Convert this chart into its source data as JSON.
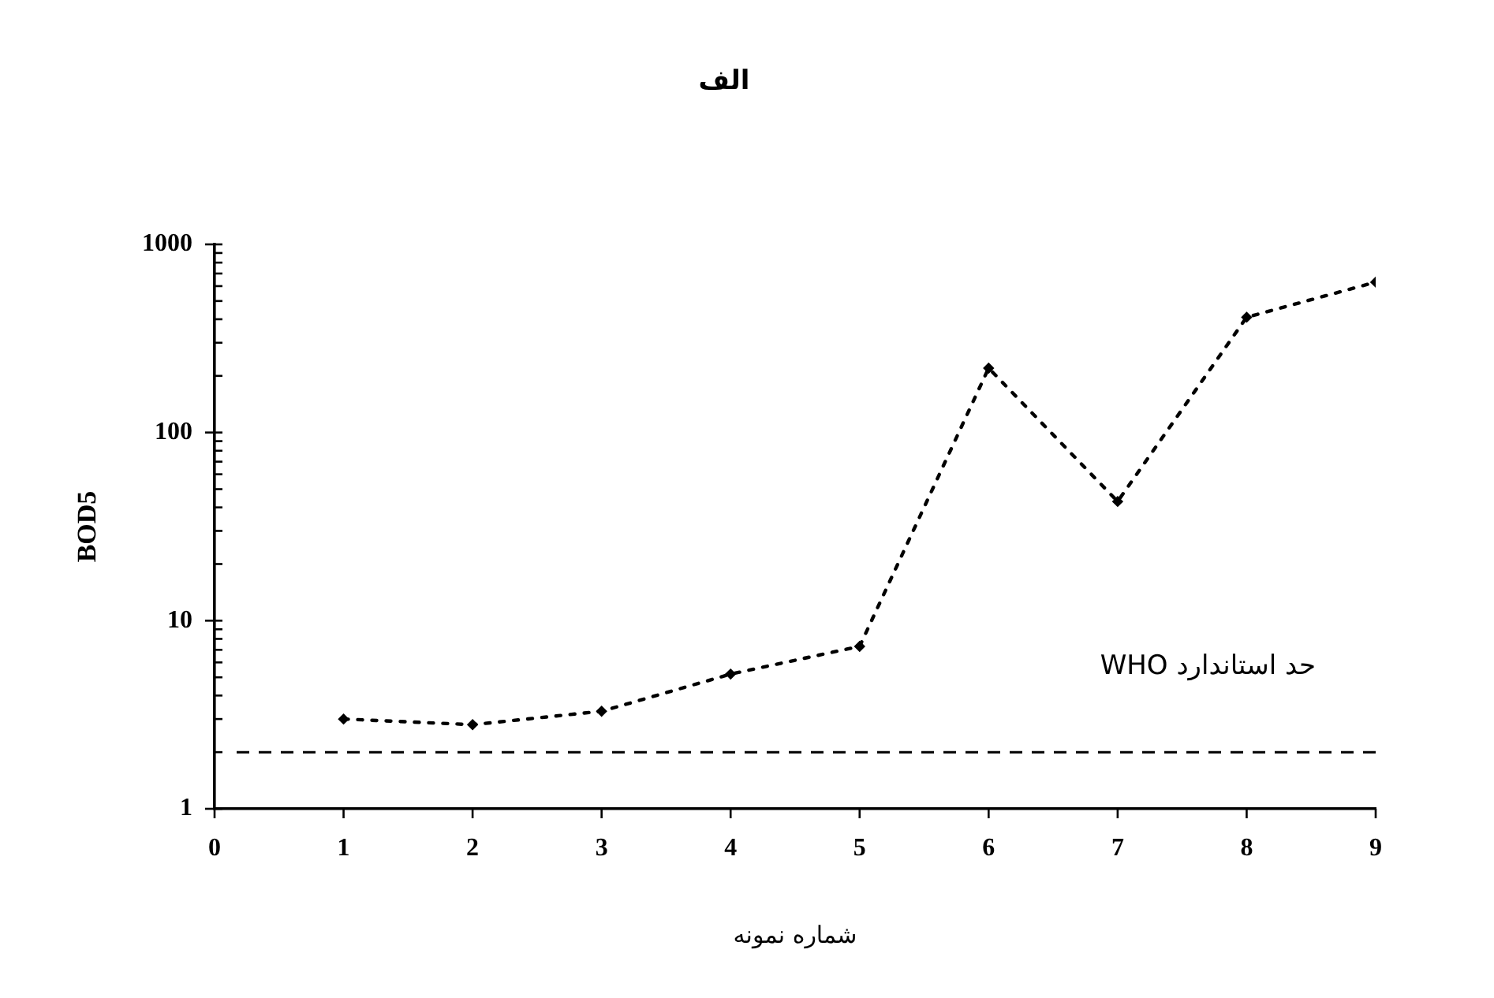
{
  "chart_data": {
    "type": "line",
    "title": "الف",
    "xlabel": "شماره نمونه",
    "ylabel": "BOD5",
    "x": [
      1,
      2,
      3,
      4,
      5,
      6,
      7,
      8,
      9
    ],
    "series": [
      {
        "color": "#000000",
        "values": [
          3,
          2.8,
          3.3,
          5.2,
          7.3,
          220,
          43,
          410,
          630
        ]
      }
    ],
    "xlim": [
      0,
      9
    ],
    "xticks": [
      0,
      1,
      2,
      3,
      4,
      5,
      6,
      7,
      8,
      9
    ],
    "ylim": [
      1,
      1000
    ],
    "yticks": [
      1,
      {
        "value": 2,
        "label": null
      },
      {
        "value": 3,
        "label": null
      },
      {
        "value": 4,
        "label": null
      },
      {
        "value": 5,
        "label": null
      },
      {
        "value": 6,
        "label": null
      },
      {
        "value": 7,
        "label": null
      },
      {
        "value": 8,
        "label": null
      },
      {
        "value": 9,
        "label": null
      },
      10,
      {
        "value": 20,
        "label": null
      },
      {
        "value": 30,
        "label": null
      },
      {
        "value": 40,
        "label": null
      },
      {
        "value": 50,
        "label": null
      },
      {
        "value": 60,
        "label": null
      },
      {
        "value": 70,
        "label": null
      },
      {
        "value": 80,
        "label": null
      },
      {
        "value": 90,
        "label": null
      },
      100,
      {
        "value": 200,
        "label": null
      },
      {
        "value": 300,
        "label": null
      },
      {
        "value": 400,
        "label": null
      },
      {
        "value": 500,
        "label": null
      },
      {
        "value": 600,
        "label": null
      },
      {
        "value": 700,
        "label": null
      },
      {
        "value": 800,
        "label": null
      },
      {
        "value": 900,
        "label": null
      },
      1000
    ],
    "log": "y",
    "legend": false,
    "marker": "diamond",
    "line_style": "dotted",
    "ref_lines": [
      {
        "axis": "y",
        "value": 2,
        "label": "حد استاندارد WHO",
        "color": "#000000",
        "line_style": "dashed"
      }
    ]
  }
}
